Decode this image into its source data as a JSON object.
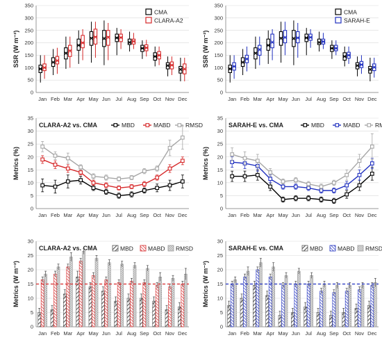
{
  "months": [
    "Jan",
    "Feb",
    "Mar",
    "Apr",
    "May",
    "Jun",
    "Jul",
    "Aug",
    "Sep",
    "Oct",
    "Nov",
    "Dec"
  ],
  "colors": {
    "cma": "#000000",
    "clara": "#d62728",
    "sarah": "#1f2fbf",
    "rmsd": "#a6a6a6",
    "ref_clara": "#d62728",
    "ref_sarah": "#1f2fbf"
  },
  "chart_data": [
    {
      "id": "box-clara",
      "type": "box",
      "ylabel": "SSR (W m⁻²)",
      "ylim": [
        0,
        350
      ],
      "yticks": [
        0,
        50,
        100,
        150,
        200,
        250,
        300,
        350
      ],
      "categories": [
        "Jan",
        "Feb",
        "Mar",
        "Apr",
        "May",
        "Jun",
        "Jul",
        "Aug",
        "Sep",
        "Oct",
        "Nov",
        "Dec"
      ],
      "legend": [
        "CMA",
        "CLARA-A2"
      ],
      "legend_position": "top-right",
      "series": [
        {
          "name": "CMA",
          "color": "#000000",
          "boxes": [
            {
              "min": 40,
              "q1": 80,
              "med": 95,
              "q3": 110,
              "max": 150,
              "mean": 95
            },
            {
              "min": 70,
              "q1": 105,
              "med": 120,
              "q3": 140,
              "max": 175,
              "mean": 122
            },
            {
              "min": 95,
              "q1": 135,
              "med": 160,
              "q3": 180,
              "max": 225,
              "mean": 158
            },
            {
              "min": 115,
              "q1": 170,
              "med": 190,
              "q3": 215,
              "max": 250,
              "mean": 190
            },
            {
              "min": 120,
              "q1": 190,
              "med": 220,
              "q3": 245,
              "max": 285,
              "mean": 218
            },
            {
              "min": 110,
              "q1": 185,
              "med": 215,
              "q3": 250,
              "max": 290,
              "mean": 218
            },
            {
              "min": 150,
              "q1": 205,
              "med": 220,
              "q3": 235,
              "max": 260,
              "mean": 220
            },
            {
              "min": 165,
              "q1": 193,
              "med": 200,
              "q3": 215,
              "max": 245,
              "mean": 202
            },
            {
              "min": 135,
              "q1": 165,
              "med": 178,
              "q3": 190,
              "max": 210,
              "mean": 178
            },
            {
              "min": 105,
              "q1": 130,
              "med": 145,
              "q3": 160,
              "max": 185,
              "mean": 145
            },
            {
              "min": 65,
              "q1": 95,
              "med": 110,
              "q3": 120,
              "max": 145,
              "mean": 108
            },
            {
              "min": 45,
              "q1": 78,
              "med": 95,
              "q3": 105,
              "max": 140,
              "mean": 92
            }
          ]
        },
        {
          "name": "CLARA-A2",
          "color": "#d62728",
          "boxes": [
            {
              "min": 55,
              "q1": 88,
              "med": 100,
              "q3": 115,
              "max": 150,
              "mean": 100
            },
            {
              "min": 75,
              "q1": 115,
              "med": 130,
              "q3": 145,
              "max": 180,
              "mean": 128
            },
            {
              "min": 100,
              "q1": 145,
              "med": 170,
              "q3": 190,
              "max": 225,
              "mean": 167
            },
            {
              "min": 130,
              "q1": 180,
              "med": 200,
              "q3": 230,
              "max": 255,
              "mean": 200
            },
            {
              "min": 140,
              "q1": 195,
              "med": 225,
              "q3": 255,
              "max": 285,
              "mean": 223
            },
            {
              "min": 130,
              "q1": 190,
              "med": 225,
              "q3": 250,
              "max": 280,
              "mean": 222
            },
            {
              "min": 175,
              "q1": 205,
              "med": 222,
              "q3": 235,
              "max": 255,
              "mean": 221
            },
            {
              "min": 175,
              "q1": 195,
              "med": 205,
              "q3": 215,
              "max": 240,
              "mean": 206
            },
            {
              "min": 145,
              "q1": 168,
              "med": 180,
              "q3": 192,
              "max": 212,
              "mean": 180
            },
            {
              "min": 110,
              "q1": 135,
              "med": 150,
              "q3": 165,
              "max": 185,
              "mean": 150
            },
            {
              "min": 70,
              "q1": 95,
              "med": 110,
              "q3": 123,
              "max": 145,
              "mean": 110
            },
            {
              "min": 45,
              "q1": 75,
              "med": 92,
              "q3": 115,
              "max": 140,
              "mean": 95
            }
          ]
        }
      ]
    },
    {
      "id": "box-sarah",
      "type": "box",
      "ylabel": "SSR (W m⁻²)",
      "ylim": [
        0,
        350
      ],
      "yticks": [
        0,
        50,
        100,
        150,
        200,
        250,
        300,
        350
      ],
      "categories": [
        "Jan",
        "Feb",
        "Mar",
        "Apr",
        "May",
        "Jun",
        "Jul",
        "Aug",
        "Sep",
        "Oct",
        "Nov",
        "Dec"
      ],
      "legend": [
        "CMA",
        "SARAH-E"
      ],
      "legend_position": "top-right",
      "series": [
        {
          "name": "CMA",
          "color": "#000000",
          "boxes": [
            {
              "min": 40,
              "q1": 80,
              "med": 95,
              "q3": 110,
              "max": 150,
              "mean": 95
            },
            {
              "min": 70,
              "q1": 105,
              "med": 120,
              "q3": 140,
              "max": 175,
              "mean": 122
            },
            {
              "min": 95,
              "q1": 135,
              "med": 160,
              "q3": 180,
              "max": 225,
              "mean": 158
            },
            {
              "min": 115,
              "q1": 170,
              "med": 190,
              "q3": 215,
              "max": 250,
              "mean": 190
            },
            {
              "min": 120,
              "q1": 190,
              "med": 220,
              "q3": 245,
              "max": 285,
              "mean": 218
            },
            {
              "min": 110,
              "q1": 185,
              "med": 215,
              "q3": 250,
              "max": 290,
              "mean": 218
            },
            {
              "min": 150,
              "q1": 205,
              "med": 220,
              "q3": 235,
              "max": 260,
              "mean": 220
            },
            {
              "min": 165,
              "q1": 193,
              "med": 200,
              "q3": 215,
              "max": 245,
              "mean": 202
            },
            {
              "min": 135,
              "q1": 165,
              "med": 178,
              "q3": 190,
              "max": 210,
              "mean": 178
            },
            {
              "min": 105,
              "q1": 130,
              "med": 145,
              "q3": 160,
              "max": 185,
              "mean": 145
            },
            {
              "min": 65,
              "q1": 95,
              "med": 110,
              "q3": 120,
              "max": 145,
              "mean": 108
            },
            {
              "min": 45,
              "q1": 78,
              "med": 95,
              "q3": 105,
              "max": 140,
              "mean": 92
            }
          ]
        },
        {
          "name": "SARAH-E",
          "color": "#1f2fbf",
          "boxes": [
            {
              "min": 55,
              "q1": 90,
              "med": 105,
              "q3": 120,
              "max": 150,
              "mean": 105
            },
            {
              "min": 85,
              "q1": 120,
              "med": 135,
              "q3": 150,
              "max": 185,
              "mean": 135
            },
            {
              "min": 110,
              "q1": 150,
              "med": 175,
              "q3": 190,
              "max": 225,
              "mean": 172
            },
            {
              "min": 130,
              "q1": 180,
              "med": 200,
              "q3": 235,
              "max": 255,
              "mean": 203
            },
            {
              "min": 150,
              "q1": 200,
              "med": 220,
              "q3": 250,
              "max": 285,
              "mean": 222
            },
            {
              "min": 140,
              "q1": 200,
              "med": 220,
              "q3": 245,
              "max": 280,
              "mean": 220
            },
            {
              "min": 180,
              "q1": 210,
              "med": 222,
              "q3": 235,
              "max": 255,
              "mean": 222
            },
            {
              "min": 175,
              "q1": 195,
              "med": 205,
              "q3": 215,
              "max": 240,
              "mean": 205
            },
            {
              "min": 150,
              "q1": 168,
              "med": 178,
              "q3": 190,
              "max": 210,
              "mean": 178
            },
            {
              "min": 115,
              "q1": 138,
              "med": 150,
              "q3": 162,
              "max": 185,
              "mean": 150
            },
            {
              "min": 75,
              "q1": 100,
              "med": 112,
              "q3": 125,
              "max": 150,
              "mean": 112
            },
            {
              "min": 60,
              "q1": 88,
              "med": 100,
              "q3": 115,
              "max": 140,
              "mean": 102
            }
          ]
        }
      ]
    },
    {
      "id": "line-clara",
      "type": "line",
      "title": "CLARA-A2 vs. CMA",
      "ylabel": "Metrics (%)",
      "ylim": [
        0,
        35
      ],
      "yticks": [
        0,
        5,
        10,
        15,
        20,
        25,
        30,
        35
      ],
      "categories": [
        "Jan",
        "Feb",
        "Mar",
        "Apr",
        "May",
        "Jun",
        "Jul",
        "Aug",
        "Sep",
        "Oct",
        "Nov",
        "Dec"
      ],
      "legend_position": "top",
      "series": [
        {
          "name": "MBD",
          "color": "#000000",
          "values": [
            9.0,
            8.5,
            10.5,
            11.0,
            8.0,
            6.5,
            5.0,
            5.5,
            7.0,
            8.0,
            9.0,
            10.5
          ],
          "errors": [
            2.5,
            2.5,
            2.5,
            1.5,
            1.0,
            1.0,
            1.0,
            1.0,
            1.0,
            1.5,
            2.0,
            2.5
          ]
        },
        {
          "name": "MABD",
          "color": "#d62728",
          "values": [
            19.0,
            17.0,
            15.5,
            14.0,
            10.0,
            9.0,
            8.0,
            8.5,
            9.5,
            12.0,
            15.5,
            18.5
          ],
          "errors": [
            1.5,
            1.5,
            1.5,
            1.0,
            1.0,
            1.0,
            0.8,
            0.8,
            1.0,
            1.0,
            1.5,
            1.5
          ]
        },
        {
          "name": "RMSD",
          "color": "#a6a6a6",
          "values": [
            24.0,
            20.5,
            19.5,
            16.0,
            12.5,
            12.0,
            11.5,
            12.0,
            14.5,
            15.5,
            23.5,
            27.5
          ],
          "errors": [
            2.0,
            1.5,
            2.0,
            1.0,
            1.0,
            1.0,
            0.8,
            0.8,
            1.0,
            1.0,
            3.0,
            4.5
          ]
        }
      ]
    },
    {
      "id": "line-sarah",
      "type": "line",
      "title": "SARAH-E vs. CMA",
      "ylabel": "Metrics (%)",
      "ylim": [
        0,
        35
      ],
      "yticks": [
        0,
        5,
        10,
        15,
        20,
        25,
        30,
        35
      ],
      "categories": [
        "Jan",
        "Feb",
        "Mar",
        "Apr",
        "May",
        "Jun",
        "Jul",
        "Aug",
        "Sep",
        "Oct",
        "Nov",
        "Dec"
      ],
      "legend_position": "top",
      "series": [
        {
          "name": "MBD",
          "color": "#000000",
          "values": [
            12.5,
            12.5,
            13.0,
            8.5,
            3.5,
            4.0,
            4.0,
            3.5,
            3.0,
            5.5,
            9.0,
            13.5
          ],
          "errors": [
            2.0,
            2.0,
            2.0,
            1.5,
            1.0,
            1.0,
            1.0,
            1.0,
            1.0,
            1.5,
            2.0,
            2.5
          ]
        },
        {
          "name": "MABD",
          "color": "#1f2fbf",
          "values": [
            18.0,
            17.5,
            16.5,
            11.5,
            8.5,
            8.5,
            8.0,
            7.0,
            7.0,
            9.0,
            13.0,
            17.5
          ],
          "errors": [
            2.0,
            2.0,
            2.0,
            1.5,
            1.0,
            1.0,
            1.0,
            1.0,
            1.0,
            1.5,
            2.0,
            2.0
          ]
        },
        {
          "name": "RMSD",
          "color": "#a6a6a6",
          "values": [
            21.0,
            19.5,
            18.5,
            14.0,
            10.5,
            11.0,
            9.5,
            8.5,
            10.0,
            13.0,
            18.5,
            24.0
          ],
          "errors": [
            2.5,
            2.5,
            2.5,
            1.5,
            1.0,
            1.0,
            1.0,
            1.0,
            1.0,
            2.0,
            2.5,
            5.0
          ]
        }
      ]
    },
    {
      "id": "bar-clara",
      "type": "bar",
      "title": "CLARA-A2 vs. CMA",
      "ylabel": "Metrics (W m⁻²)",
      "ylim": [
        0,
        30
      ],
      "yticks": [
        0,
        5,
        10,
        15,
        20,
        25,
        30
      ],
      "categories": [
        "Jan",
        "Feb",
        "Mar",
        "Apr",
        "May",
        "Jun",
        "Jul",
        "Aug",
        "Sep",
        "Oct",
        "Nov",
        "Dec"
      ],
      "reference_line": 15,
      "legend_position": "top",
      "series": [
        {
          "name": "MBD",
          "color": "#808080",
          "values": [
            5.0,
            6.0,
            11.5,
            17.5,
            14.0,
            12.5,
            9.0,
            10.0,
            10.0,
            9.0,
            6.0,
            7.0
          ],
          "errors": [
            1.5,
            1.5,
            1.5,
            2.0,
            1.5,
            1.5,
            1.5,
            1.5,
            1.5,
            1.5,
            1.5,
            1.5
          ]
        },
        {
          "name": "MABD",
          "color": "#d62728",
          "values": [
            16.5,
            18.5,
            21.0,
            23.0,
            18.0,
            16.5,
            15.5,
            16.0,
            15.5,
            14.5,
            14.0,
            15.0
          ],
          "errors": [
            1.0,
            1.0,
            1.0,
            1.0,
            1.0,
            1.0,
            1.0,
            1.0,
            1.0,
            1.0,
            1.0,
            1.0
          ]
        },
        {
          "name": "RMSD",
          "color": "#bfbfbf",
          "values": [
            18.5,
            21.0,
            24.5,
            26.5,
            24.0,
            22.5,
            22.0,
            21.5,
            20.5,
            17.5,
            17.0,
            18.5
          ],
          "errors": [
            1.0,
            1.0,
            1.5,
            1.0,
            1.0,
            1.0,
            1.0,
            1.0,
            1.0,
            1.5,
            1.0,
            2.0
          ]
        }
      ]
    },
    {
      "id": "bar-sarah",
      "type": "bar",
      "title": "SARAH-E vs. CMA",
      "ylabel": "Metrics (W m⁻²)",
      "ylim": [
        0,
        30
      ],
      "yticks": [
        0,
        5,
        10,
        15,
        20,
        25,
        30
      ],
      "categories": [
        "Jan",
        "Feb",
        "Mar",
        "Apr",
        "May",
        "Jun",
        "Jul",
        "Aug",
        "Sep",
        "Oct",
        "Nov",
        "Dec"
      ],
      "reference_line": 15,
      "legend_position": "top",
      "series": [
        {
          "name": "MBD",
          "color": "#808080",
          "values": [
            7.5,
            10.0,
            14.5,
            11.0,
            4.0,
            5.0,
            7.0,
            5.0,
            4.0,
            5.0,
            6.5,
            7.5
          ],
          "errors": [
            1.5,
            1.5,
            1.5,
            1.5,
            1.5,
            1.5,
            1.5,
            1.5,
            1.5,
            1.5,
            1.5,
            1.5
          ]
        },
        {
          "name": "MABD",
          "color": "#1f2fbf",
          "values": [
            15.0,
            17.5,
            20.0,
            17.5,
            14.5,
            15.0,
            15.0,
            12.5,
            12.0,
            12.5,
            13.0,
            14.5
          ],
          "errors": [
            1.0,
            1.0,
            1.0,
            1.0,
            1.0,
            1.0,
            1.0,
            1.0,
            1.0,
            1.0,
            1.0,
            1.0
          ]
        },
        {
          "name": "RMSD",
          "color": "#bfbfbf",
          "values": [
            16.5,
            19.5,
            22.5,
            21.0,
            18.0,
            19.5,
            18.0,
            15.0,
            14.5,
            14.5,
            14.5,
            15.5
          ],
          "errors": [
            1.0,
            1.5,
            1.5,
            1.5,
            1.0,
            1.0,
            1.0,
            1.0,
            1.0,
            1.0,
            1.0,
            1.5
          ]
        }
      ]
    }
  ]
}
